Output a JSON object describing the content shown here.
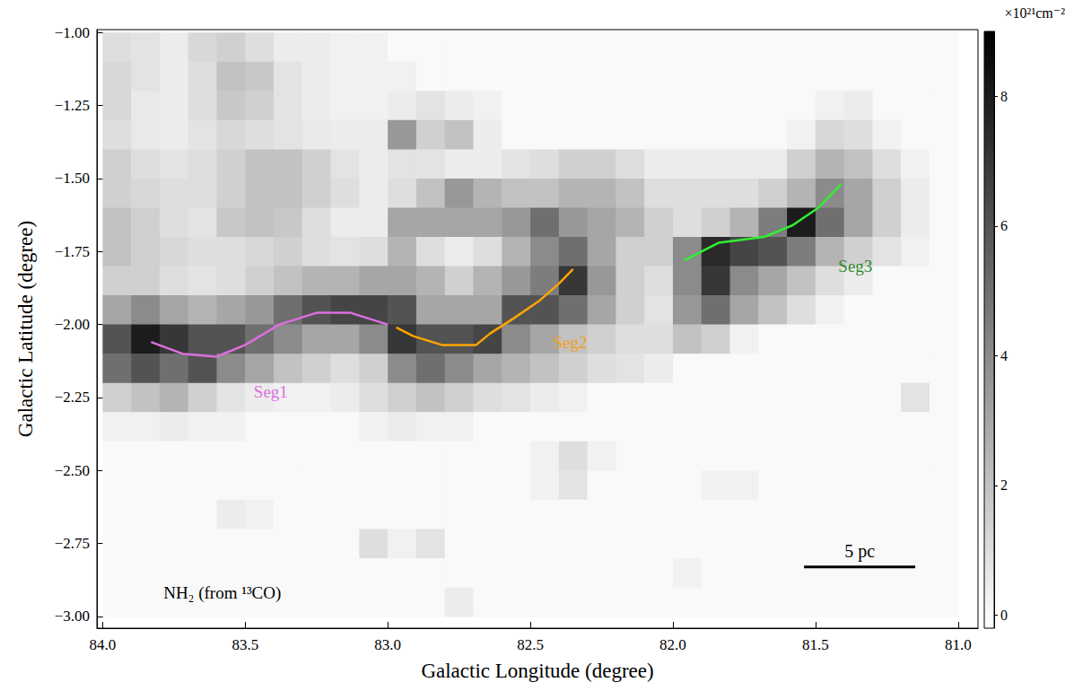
{
  "chart_data": {
    "type": "heatmap",
    "x_label": "Galactic Longitude (degree)",
    "y_label": "Galactic Latitude (degree)",
    "xlim": [
      84.02,
      80.93
    ],
    "ylim": [
      -3.04,
      -0.99
    ],
    "xticks": [
      {
        "value": 84,
        "label": "84.0"
      },
      83.5,
      {
        "value": 83,
        "label": "83.0"
      },
      82.5,
      {
        "value": 82,
        "label": "82.0"
      },
      81.5,
      {
        "value": 81,
        "label": "81.0"
      }
    ],
    "yticks": [
      {
        "value": -1,
        "label": "−1.00"
      },
      {
        "value": -1.25,
        "label": "−1.25"
      },
      {
        "value": -1.5,
        "label": "−1.50"
      },
      {
        "value": -1.75,
        "label": "−1.75"
      },
      {
        "value": -2,
        "label": "−2.00"
      },
      {
        "value": -2.25,
        "label": "−2.25"
      },
      {
        "value": -2.5,
        "label": "−2.50"
      },
      {
        "value": -2.75,
        "label": "−2.75"
      },
      {
        "value": -3,
        "label": "−3.00"
      }
    ],
    "grid": false,
    "x": [
      83.95,
      83.85,
      83.75,
      83.65,
      83.55,
      83.45,
      83.35,
      83.25,
      83.15,
      83.05,
      82.95,
      82.85,
      82.75,
      82.65,
      82.55,
      82.45,
      82.35,
      82.25,
      82.15,
      82.05,
      81.95,
      81.85,
      81.75,
      81.65,
      81.55,
      81.45,
      81.35,
      81.25,
      81.15,
      81.05
    ],
    "y": [
      -1.05,
      -1.15,
      -1.25,
      -1.35,
      -1.45,
      -1.55,
      -1.65,
      -1.75,
      -1.85,
      -1.95,
      -2.05,
      -2.15,
      -2.25,
      -2.35,
      -2.45,
      -2.55,
      -2.65,
      -2.75,
      -2.85,
      -2.95
    ],
    "cells": [
      [
        1,
        0.8,
        0.5,
        1.2,
        1.5,
        1,
        0.5,
        0.5,
        0.3,
        0.3,
        0,
        0,
        0,
        0,
        0,
        0,
        0,
        0,
        0,
        0,
        0,
        0,
        0,
        0,
        0,
        0,
        0,
        0,
        0,
        0
      ],
      [
        1.2,
        0.8,
        0.5,
        1,
        2,
        1.8,
        0.8,
        0.5,
        0.3,
        0.3,
        0.3,
        0,
        0,
        0,
        0,
        0,
        0,
        0,
        0,
        0,
        0,
        0,
        0,
        0,
        0,
        0,
        0,
        0,
        0,
        0
      ],
      [
        1.2,
        0.6,
        0.5,
        1,
        1.8,
        1.5,
        0.8,
        0.5,
        0.3,
        0.3,
        0.5,
        0.8,
        0.5,
        0.3,
        0,
        0,
        0,
        0,
        0,
        0,
        0,
        0,
        0,
        0,
        0,
        0.3,
        0.5,
        0,
        0,
        0
      ],
      [
        1,
        0.6,
        0.5,
        0.8,
        1.2,
        1,
        0.8,
        0.6,
        0.5,
        0.5,
        3.5,
        1.5,
        2,
        0.5,
        0,
        0,
        0,
        0,
        0,
        0,
        0,
        0,
        0,
        0,
        0.3,
        1.2,
        1,
        0.3,
        0,
        0
      ],
      [
        1.5,
        1,
        0.8,
        1,
        1.5,
        2,
        2,
        1.5,
        0.8,
        0.5,
        0.8,
        0.8,
        0.5,
        0.5,
        0.8,
        1,
        1.5,
        1.5,
        1,
        0.5,
        0.5,
        0.5,
        0.5,
        0.5,
        1.5,
        2.5,
        2,
        1,
        0.3,
        0
      ],
      [
        1.5,
        1.2,
        1,
        1,
        1.5,
        2,
        2,
        1.5,
        1,
        0.5,
        1,
        2,
        3.5,
        2.5,
        2,
        2,
        2.5,
        2.5,
        2,
        1,
        1,
        1,
        1,
        1.5,
        2.5,
        4,
        3,
        1.5,
        0.5,
        0
      ],
      [
        2,
        1.5,
        1,
        0.8,
        1.8,
        2,
        1.8,
        1,
        0.5,
        0.5,
        3,
        3,
        3,
        3,
        3.5,
        5,
        3.5,
        3,
        2.5,
        1.5,
        1,
        1.5,
        2.5,
        4.5,
        8,
        5,
        3,
        1.5,
        0.5,
        0
      ],
      [
        2,
        1.5,
        1.2,
        1,
        1,
        1.2,
        1.5,
        1,
        0.8,
        1,
        2.5,
        1,
        0.5,
        1,
        2.5,
        4,
        5,
        3,
        1.5,
        1.5,
        4,
        7.5,
        6.5,
        6,
        4.5,
        2.5,
        1.5,
        0.8,
        0.3,
        0
      ],
      [
        1.5,
        1.5,
        1,
        0.8,
        1,
        1.5,
        2,
        2.5,
        2.5,
        3,
        3,
        2.5,
        1.5,
        2.5,
        3.5,
        4.5,
        7,
        3.5,
        1.5,
        1,
        4,
        7,
        4,
        3,
        2,
        1,
        0.5,
        0,
        0,
        0
      ],
      [
        3,
        4,
        3,
        2.5,
        3,
        3.5,
        5,
        6,
        6.5,
        6.5,
        6,
        3,
        3,
        3,
        6,
        6,
        5,
        3,
        1.5,
        0.8,
        3.5,
        5,
        3,
        2,
        1,
        0.3,
        0,
        0,
        0,
        0
      ],
      [
        6,
        8,
        7,
        6,
        6,
        5,
        4,
        3,
        3,
        4,
        7,
        6,
        6,
        6.5,
        4,
        3,
        2,
        1.5,
        1,
        1,
        2,
        1.5,
        0.3,
        0,
        0,
        0,
        0,
        0,
        0,
        0
      ],
      [
        5,
        6,
        5,
        6,
        4,
        3,
        2,
        1.5,
        1,
        1.5,
        4,
        5,
        4,
        3,
        2.5,
        2,
        1.5,
        1,
        0.8,
        0.5,
        0,
        0,
        0,
        0,
        0,
        0,
        0,
        0,
        0,
        0
      ],
      [
        1.5,
        2,
        2.5,
        1.5,
        0.8,
        0.5,
        0.3,
        0.3,
        0.5,
        1,
        1.5,
        2,
        1.5,
        1,
        0.8,
        0.5,
        0.3,
        0,
        0,
        0,
        0,
        0,
        0,
        0,
        0,
        0,
        0,
        0,
        0.8,
        0
      ],
      [
        0.3,
        0.3,
        0.5,
        0.3,
        0.3,
        0,
        0,
        0,
        0,
        0.3,
        0.5,
        0.3,
        0.3,
        0,
        0,
        0,
        0,
        0,
        0,
        0,
        0,
        0,
        0,
        0,
        0,
        0,
        0,
        0,
        0,
        0
      ],
      [
        0,
        0,
        0,
        0,
        0,
        0,
        0,
        0,
        0,
        0,
        0,
        0,
        0,
        0,
        0,
        0.3,
        1,
        0.3,
        0,
        0,
        0,
        0,
        0,
        0,
        0,
        0,
        0,
        0,
        0,
        0
      ],
      [
        0,
        0,
        0,
        0,
        0,
        0,
        0,
        0,
        0,
        0,
        0,
        0,
        0,
        0,
        0,
        0.3,
        0.8,
        0,
        0,
        0,
        0,
        0.3,
        0.3,
        0,
        0,
        0,
        0,
        0,
        0,
        0
      ],
      [
        0,
        0,
        0,
        0,
        0.5,
        0.3,
        0,
        0,
        0,
        0,
        0,
        0,
        0,
        0,
        0,
        0,
        0,
        0,
        0,
        0,
        0,
        0,
        0,
        0,
        0,
        0,
        0,
        0,
        0,
        0
      ],
      [
        0,
        0,
        0,
        0,
        0,
        0,
        0,
        0,
        0,
        1,
        0.3,
        0.8,
        0,
        0,
        0,
        0,
        0,
        0,
        0,
        0,
        0,
        0,
        0,
        0,
        0,
        0,
        0,
        0,
        0,
        0
      ],
      [
        0,
        0,
        0,
        0,
        0,
        0,
        0,
        0,
        0,
        0,
        0,
        0,
        0,
        0,
        0,
        0,
        0,
        0,
        0,
        0,
        0.3,
        0,
        0,
        0,
        0,
        0,
        0,
        0,
        0,
        0
      ],
      [
        0,
        0,
        0,
        0,
        0,
        0,
        0,
        0,
        0,
        0,
        0,
        0,
        0.5,
        0,
        0,
        0,
        0,
        0,
        0,
        0,
        0,
        0,
        0,
        0,
        0,
        0,
        0,
        0,
        0,
        0
      ]
    ],
    "colorbar": {
      "range": [
        -0.2,
        9
      ],
      "ticks": [
        0,
        2,
        4,
        6,
        8
      ],
      "label": "×10²¹cm⁻²"
    },
    "series": [
      {
        "name": "Seg1",
        "type": "line",
        "color": "#dd6fdd",
        "x": [
          83.83,
          83.72,
          83.6,
          83.5,
          83.38,
          83.25,
          83.13,
          83.0
        ],
        "values": [
          -2.06,
          -2.1,
          -2.11,
          -2.07,
          -2.0,
          -1.96,
          -1.96,
          -2.0
        ]
      },
      {
        "name": "Seg2",
        "type": "line",
        "color": "#ffa500",
        "x": [
          82.97,
          82.91,
          82.81,
          82.69,
          82.64,
          82.56,
          82.47,
          82.4,
          82.35
        ],
        "values": [
          -2.01,
          -2.04,
          -2.07,
          -2.07,
          -2.03,
          -1.98,
          -1.92,
          -1.86,
          -1.81
        ]
      },
      {
        "name": "Seg3",
        "type": "line",
        "color": "#33ee33",
        "x": [
          81.96,
          81.84,
          81.68,
          81.58,
          81.49,
          81.41
        ],
        "values": [
          -1.78,
          -1.72,
          -1.7,
          -1.66,
          -1.6,
          -1.52
        ]
      }
    ],
    "annotations": [
      {
        "text": "Seg1",
        "x": 83.41,
        "y": -2.23,
        "color": "#dd6fdd"
      },
      {
        "text": "Seg2",
        "x": 82.36,
        "y": -2.06,
        "color": "#f0a020"
      },
      {
        "text": "Seg3",
        "x": 81.36,
        "y": -1.8,
        "color": "#2e8b2e"
      },
      {
        "text": "NH₂ (from ¹³CO)",
        "x": 83.58,
        "y": -2.92,
        "color": "#000000"
      }
    ],
    "scale_bar": {
      "label": "5 pc",
      "x": [
        81.54,
        81.15
      ],
      "y": -2.83
    }
  }
}
